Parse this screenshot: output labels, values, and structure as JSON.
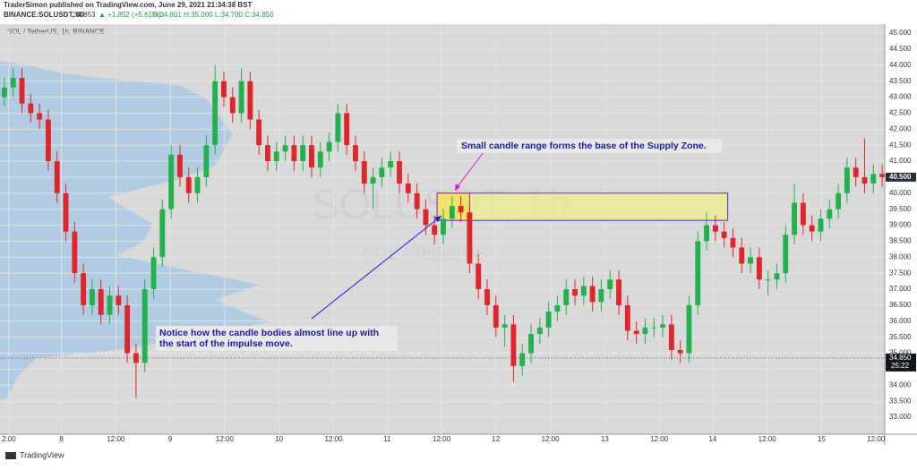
{
  "header": {
    "publisher": "TraderSimon published on TradingView.com, June 29, 2021 21:34:38 BST",
    "symbol": "BINANCE:SOLUSDT, 60",
    "price": "34.853",
    "change": "▲ +1.852 (+5.61%)",
    "ohlc": "O:34.801 H:35.000 L:34.700 C:34.850"
  },
  "footer": {
    "brand": "TradingView"
  },
  "chart_data": {
    "type": "candlestick",
    "title": "SOL / TetherUS, 1h, BINANCE",
    "watermark": "SOLUSDT, 1h",
    "watermark_subtitle": "SOL / TetherUS",
    "up_color": "#22b14c",
    "down_color": "#e0262b",
    "grid": true,
    "open": [
      43.0,
      43.3,
      43.6,
      42.8,
      42.5,
      42.3,
      41.0,
      40.0,
      38.8,
      37.5,
      36.5,
      37.0,
      36.2,
      36.8,
      36.5,
      35.0,
      34.7,
      37.0,
      38.0,
      39.5,
      41.2,
      40.5,
      40.0,
      40.5,
      41.5,
      43.5,
      43.0,
      42.5,
      43.5,
      42.3,
      41.5,
      41.0,
      41.3,
      41.5,
      41.0,
      41.5,
      40.8,
      41.3,
      41.6,
      42.5,
      41.5,
      41.0,
      40.3,
      40.5,
      40.8,
      41.0,
      40.3,
      40.0,
      39.5,
      39.0,
      38.7,
      39.2,
      39.6,
      39.4,
      37.8,
      37.0,
      36.5,
      35.8,
      35.9,
      34.6,
      35.0,
      35.6,
      35.8,
      36.3,
      36.5,
      37.0,
      36.8,
      37.1,
      36.6,
      37.0,
      37.3,
      36.5,
      35.7,
      35.6,
      35.8,
      35.8,
      35.9,
      35.1,
      35.0,
      36.5,
      38.5,
      39.0,
      38.8,
      38.6,
      38.3,
      37.8,
      38.0,
      37.3,
      37.3,
      37.5,
      38.7,
      39.7,
      39.0,
      38.8,
      39.2,
      39.5,
      40.0,
      40.8,
      40.5,
      40.3,
      40.6
    ],
    "high": [
      43.6,
      43.9,
      43.9,
      43.1,
      42.8,
      42.6,
      41.3,
      40.3,
      39.1,
      37.8,
      37.3,
      37.3,
      37.1,
      37.1,
      36.8,
      35.3,
      37.3,
      38.3,
      39.8,
      41.5,
      41.5,
      40.8,
      40.8,
      41.8,
      44.0,
      43.8,
      43.3,
      43.9,
      43.8,
      42.6,
      41.8,
      41.6,
      41.8,
      41.8,
      41.8,
      41.8,
      41.6,
      41.9,
      42.8,
      42.8,
      41.8,
      41.3,
      40.8,
      41.1,
      41.3,
      41.3,
      40.6,
      40.3,
      39.8,
      39.3,
      39.5,
      39.9,
      39.9,
      39.7,
      38.1,
      37.3,
      36.8,
      36.2,
      36.2,
      35.3,
      35.9,
      36.1,
      36.6,
      36.8,
      37.3,
      37.3,
      37.4,
      37.4,
      37.3,
      37.6,
      37.6,
      36.8,
      36.0,
      36.1,
      36.1,
      36.2,
      36.2,
      35.4,
      36.8,
      38.8,
      39.4,
      39.3,
      39.1,
      38.9,
      38.6,
      38.3,
      38.3,
      37.6,
      37.8,
      39.0,
      40.3,
      40.0,
      39.3,
      39.5,
      39.8,
      40.3,
      41.1,
      41.1,
      41.7,
      40.9,
      40.9
    ],
    "low": [
      42.7,
      43.0,
      42.5,
      42.2,
      42.0,
      40.7,
      39.7,
      38.5,
      37.2,
      36.2,
      36.2,
      35.9,
      35.9,
      36.2,
      34.7,
      33.6,
      34.4,
      36.7,
      37.7,
      39.2,
      40.2,
      39.7,
      39.7,
      40.2,
      41.2,
      42.7,
      42.2,
      42.2,
      42.0,
      41.2,
      40.7,
      40.7,
      41.0,
      40.7,
      40.7,
      40.5,
      40.5,
      41.0,
      41.3,
      41.2,
      40.7,
      40.0,
      39.5,
      40.2,
      40.5,
      40.0,
      39.7,
      39.2,
      38.7,
      38.4,
      38.4,
      38.9,
      39.1,
      37.5,
      36.7,
      36.2,
      35.5,
      35.2,
      34.1,
      34.3,
      34.7,
      35.3,
      35.5,
      36.0,
      36.2,
      36.5,
      36.5,
      36.3,
      36.3,
      36.7,
      36.2,
      35.4,
      35.3,
      35.3,
      35.5,
      35.5,
      34.8,
      34.7,
      34.7,
      36.2,
      38.2,
      38.5,
      38.3,
      38.0,
      37.5,
      37.5,
      37.0,
      36.8,
      37.0,
      37.2,
      38.4,
      38.7,
      38.5,
      38.5,
      38.9,
      39.2,
      39.7,
      40.2,
      40.0,
      40.0,
      40.2
    ],
    "close": [
      43.3,
      43.6,
      42.8,
      42.5,
      42.3,
      41.0,
      40.0,
      38.8,
      37.5,
      36.5,
      37.0,
      36.2,
      36.8,
      36.5,
      35.0,
      34.7,
      37.0,
      38.0,
      39.5,
      41.2,
      40.5,
      40.0,
      40.5,
      41.5,
      43.5,
      43.0,
      42.5,
      43.5,
      42.3,
      41.5,
      41.0,
      41.3,
      41.5,
      41.0,
      41.5,
      40.8,
      41.3,
      41.6,
      42.5,
      41.5,
      41.0,
      40.3,
      40.5,
      40.8,
      41.0,
      40.3,
      40.0,
      39.5,
      39.0,
      38.7,
      39.2,
      39.6,
      39.4,
      37.8,
      37.0,
      36.5,
      35.8,
      35.9,
      34.6,
      35.0,
      35.6,
      35.8,
      36.3,
      36.5,
      37.0,
      36.8,
      37.1,
      36.6,
      37.0,
      37.3,
      36.5,
      35.7,
      35.6,
      35.8,
      35.8,
      35.9,
      35.1,
      35.0,
      36.5,
      38.5,
      39.0,
      38.8,
      38.6,
      38.3,
      37.8,
      38.0,
      37.3,
      37.3,
      37.5,
      38.7,
      39.7,
      39.0,
      38.8,
      39.2,
      39.5,
      40.0,
      40.8,
      40.5,
      40.3,
      40.6,
      40.5
    ],
    "xlim": [
      -0.5,
      100.5
    ],
    "xticks": [
      {
        "value": 0.5,
        "label": "2:00"
      },
      {
        "value": 6.5,
        "label": "8"
      },
      {
        "value": 12.7,
        "label": "12:00"
      },
      {
        "value": 18.9,
        "label": "9"
      },
      {
        "value": 25.1,
        "label": "12:00"
      },
      {
        "value": 31.3,
        "label": "10"
      },
      {
        "value": 37.5,
        "label": "12:00"
      },
      {
        "value": 43.6,
        "label": "11"
      },
      {
        "value": 49.8,
        "label": "12:00"
      },
      {
        "value": 56,
        "label": "12"
      },
      {
        "value": 62.2,
        "label": "12:00"
      },
      {
        "value": 68.4,
        "label": "13"
      },
      {
        "value": 74.6,
        "label": "12:00"
      },
      {
        "value": 80.7,
        "label": "14"
      },
      {
        "value": 86.9,
        "label": "12:00"
      },
      {
        "value": 93.1,
        "label": "15"
      },
      {
        "value": 99.3,
        "label": "12:00"
      }
    ],
    "ylim": [
      32.47,
      45.28
    ],
    "yticks": [
      {
        "value": 33,
        "label": "33.000"
      },
      {
        "value": 33.5,
        "label": "33.500"
      },
      {
        "value": 34,
        "label": "34.000"
      },
      {
        "value": 34.5,
        "label": "34.500"
      },
      {
        "value": 35,
        "label": "35.000"
      },
      {
        "value": 35.5,
        "label": "35.500"
      },
      {
        "value": 36,
        "label": "36.000"
      },
      {
        "value": 36.5,
        "label": "36.500"
      },
      {
        "value": 37,
        "label": "37.000"
      },
      {
        "value": 37.5,
        "label": "37.500"
      },
      {
        "value": 38,
        "label": "38.000"
      },
      {
        "value": 38.5,
        "label": "38.500"
      },
      {
        "value": 39,
        "label": "39.000"
      },
      {
        "value": 39.5,
        "label": "39.500"
      },
      {
        "value": 40,
        "label": "40.000"
      },
      {
        "value": 40.5,
        "label": "40.500"
      },
      {
        "value": 41,
        "label": "41.000"
      },
      {
        "value": 41.5,
        "label": "41.500"
      },
      {
        "value": 42,
        "label": "42.000"
      },
      {
        "value": 42.5,
        "label": "42.500"
      },
      {
        "value": 43,
        "label": "43.000"
      },
      {
        "value": 43.5,
        "label": "43.500"
      },
      {
        "value": 44,
        "label": "44.000"
      },
      {
        "value": 44.5,
        "label": "44.500"
      },
      {
        "value": 45,
        "label": "45.000"
      }
    ],
    "last_price": {
      "value": 40.5,
      "label": "40.500"
    },
    "price_line": {
      "value": 34.85,
      "label": "34.850",
      "countdown": "25:22"
    },
    "supply_zone": {
      "top": 40.0,
      "bottom": 39.15,
      "start": 49.3,
      "end": 82.4,
      "base_end": 53
    },
    "annotations": {
      "zone_note": "Small candle range forms the base of the Supply Zone.",
      "impulse_note": [
        "Notice how the candle bodies almost line up with",
        "the start of the impulse move."
      ]
    }
  }
}
